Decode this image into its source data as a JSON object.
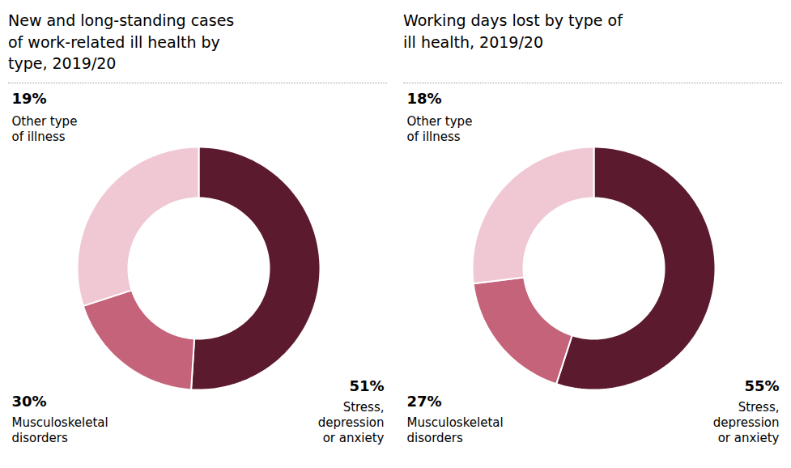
{
  "chart_data": [
    {
      "type": "donut",
      "title": "New and long-standing cases\nof work-related ill health by\ntype, 2019/20",
      "categories": [
        "Stress,\ndepression\nor anxiety",
        "Other type\nof illness",
        "Musculoskeletal\ndisorders"
      ],
      "values": [
        51,
        19,
        30
      ],
      "value_labels": [
        "51%",
        "19%",
        "30%"
      ],
      "colors": [
        "#5c1a2e",
        "#c4637a",
        "#f0c8d4"
      ],
      "data_labels": true
    },
    {
      "type": "donut",
      "title": "Working days lost by type of\nill health, 2019/20",
      "categories": [
        "Stress,\ndepression\nor anxiety",
        "Other type\nof illness",
        "Musculoskeletal\ndisorders"
      ],
      "values": [
        55,
        18,
        27
      ],
      "value_labels": [
        "55%",
        "18%",
        "27%"
      ],
      "colors": [
        "#5c1a2e",
        "#c4637a",
        "#f0c8d4"
      ],
      "data_labels": true
    }
  ]
}
